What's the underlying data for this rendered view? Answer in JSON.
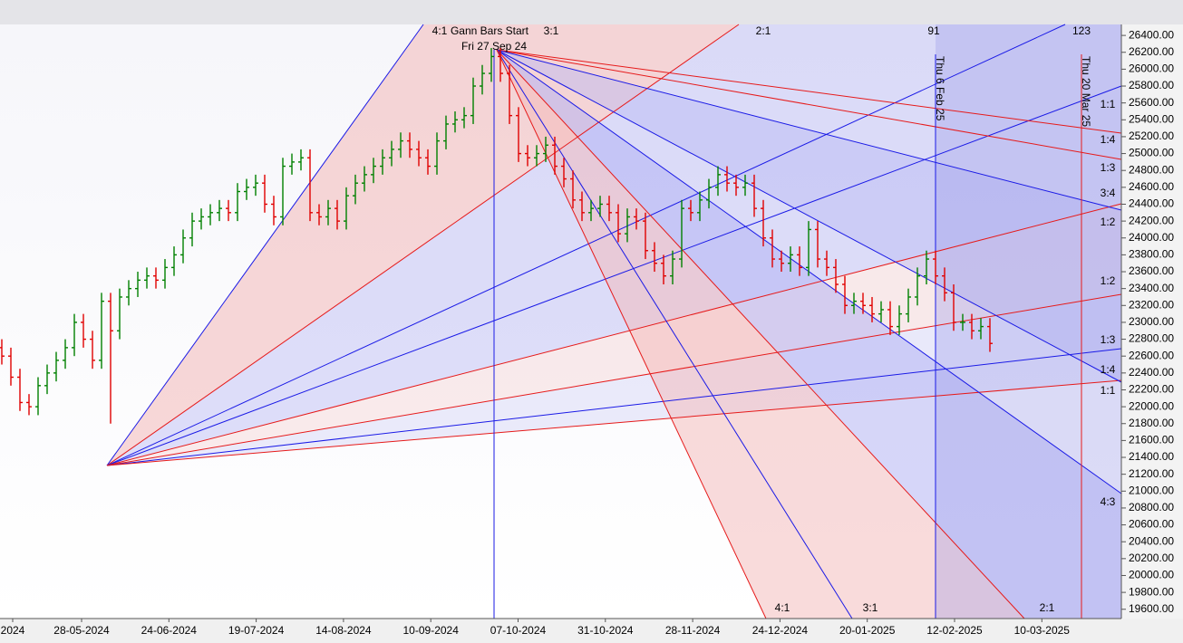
{
  "chart_data": {
    "type": "ohlc",
    "up_color": "#008000",
    "down_color": "#e00000",
    "ylim": [
      19490,
      26530
    ],
    "yticks": [
      {
        "value": 26400,
        "label": "26400.00"
      },
      {
        "value": 26200,
        "label": "26200.00"
      },
      {
        "value": 26000,
        "label": "26000.00"
      },
      {
        "value": 25800,
        "label": "25800.00"
      },
      {
        "value": 25600,
        "label": "25600.00"
      },
      {
        "value": 25400,
        "label": "25400.00"
      },
      {
        "value": 25200,
        "label": "25200.00"
      },
      {
        "value": 25000,
        "label": "25000.00"
      },
      {
        "value": 24800,
        "label": "24800.00"
      },
      {
        "value": 24600,
        "label": "24600.00"
      },
      {
        "value": 24400,
        "label": "24400.00"
      },
      {
        "value": 24200,
        "label": "24200.00"
      },
      {
        "value": 24000,
        "label": "24000.00"
      },
      {
        "value": 23800,
        "label": "23800.00"
      },
      {
        "value": 23600,
        "label": "23600.00"
      },
      {
        "value": 23400,
        "label": "23400.00"
      },
      {
        "value": 23200,
        "label": "23200.00"
      },
      {
        "value": 23000,
        "label": "23000.00"
      },
      {
        "value": 22800,
        "label": "22800.00"
      },
      {
        "value": 22600,
        "label": "22600.00"
      },
      {
        "value": 22400,
        "label": "22400.00"
      },
      {
        "value": 22200,
        "label": "22200.00"
      },
      {
        "value": 22000,
        "label": "22000.00"
      },
      {
        "value": 21800,
        "label": "21800.00"
      },
      {
        "value": 21600,
        "label": "21600.00"
      },
      {
        "value": 21400,
        "label": "21400.00"
      },
      {
        "value": 21200,
        "label": "21200.00"
      },
      {
        "value": 21000,
        "label": "21000.00"
      },
      {
        "value": 20800,
        "label": "20800.00"
      },
      {
        "value": 20600,
        "label": "20600.00"
      },
      {
        "value": 20400,
        "label": "20400.00"
      },
      {
        "value": 20200,
        "label": "20200.00"
      },
      {
        "value": 20000,
        "label": "20000.00"
      },
      {
        "value": 19800,
        "label": "19800.00"
      },
      {
        "value": 19600,
        "label": "19600.00"
      }
    ],
    "xticks": [
      "2024",
      "28-05-2024",
      "24-06-2024",
      "19-07-2024",
      "14-08-2024",
      "10-09-2024",
      "07-10-2024",
      "31-10-2024",
      "28-11-2024",
      "24-12-2024",
      "20-01-2025",
      "12-02-2025",
      "10-03-2025"
    ],
    "annotations": [
      "4:1",
      "Gann Bars Start",
      "3:1",
      "Fri 27 Sep 24",
      "2:1",
      "91",
      "123"
    ],
    "date_markers": [
      "Thu 6 Feb 25",
      "Thu 20 Mar 25"
    ],
    "angle_labels_right": [
      "1:1",
      "1:4",
      "1:3",
      "3:4",
      "1:2",
      "1:2",
      "1:3",
      "1:4",
      "1:1",
      "4:3"
    ],
    "angle_labels_bottom": [
      "4:1",
      "3:1",
      "2:1"
    ],
    "open": [
      22700,
      22600,
      22350,
      22050,
      22000,
      22250,
      22400,
      22550,
      22700,
      23000,
      22800,
      22550,
      23250,
      22900,
      23300,
      23400,
      23500,
      23550,
      23500,
      23650,
      23800,
      24000,
      24200,
      24250,
      24300,
      24350,
      24300,
      24550,
      24600,
      24650,
      24400,
      24250,
      24850,
      24900,
      24950,
      24300,
      24250,
      24350,
      24200,
      24500,
      24650,
      24750,
      24850,
      24950,
      25050,
      25150,
      25050,
      24950,
      24850,
      25150,
      25350,
      25400,
      25450,
      25800,
      25950,
      26150,
      25950,
      25450,
      25000,
      24950,
      25000,
      25100,
      24850,
      24700,
      24450,
      24300,
      24350,
      24400,
      24300,
      24050,
      24250,
      24200,
      23850,
      23700,
      23550,
      23750,
      24350,
      24300,
      24450,
      24600,
      24750,
      24650,
      24600,
      24650,
      24350,
      24000,
      23750,
      23700,
      23800,
      23650,
      24100,
      23750,
      23650,
      23450,
      23200,
      23250,
      23200,
      23100,
      23150,
      22950,
      23100,
      23300,
      23550,
      23750,
      23550,
      23350,
      23000,
      23000,
      22900,
      22950
    ],
    "high": [
      22800,
      22700,
      22450,
      22150,
      22350,
      22500,
      22650,
      22800,
      23100,
      23100,
      22900,
      23350,
      23350,
      23400,
      23500,
      23600,
      23650,
      23650,
      23750,
      23900,
      24100,
      24300,
      24350,
      24400,
      24450,
      24450,
      24650,
      24700,
      24750,
      24750,
      24500,
      24950,
      25000,
      25050,
      25050,
      24400,
      24450,
      24450,
      24600,
      24750,
      24850,
      24950,
      25050,
      25150,
      25250,
      25250,
      25150,
      25050,
      25250,
      25450,
      25500,
      25550,
      25900,
      26050,
      26250,
      26250,
      26050,
      25550,
      25100,
      25100,
      25200,
      25200,
      24950,
      24800,
      24550,
      24450,
      24500,
      24500,
      24400,
      24350,
      24350,
      24300,
      23950,
      23800,
      23850,
      24450,
      24450,
      24550,
      24700,
      24850,
      24850,
      24750,
      24750,
      24750,
      24450,
      24100,
      23850,
      23900,
      23900,
      24200,
      24200,
      23850,
      23750,
      23550,
      23350,
      23350,
      23300,
      23250,
      23250,
      23200,
      23400,
      23650,
      23850,
      23850,
      23650,
      23450,
      23100,
      23100,
      23050,
      23050
    ],
    "low": [
      22500,
      22250,
      21950,
      21900,
      21900,
      22150,
      22300,
      22450,
      22600,
      22700,
      22450,
      22450,
      21800,
      22800,
      23200,
      23300,
      23400,
      23400,
      23400,
      23550,
      23700,
      23900,
      24100,
      24150,
      24200,
      24200,
      24200,
      24450,
      24500,
      24300,
      24150,
      24150,
      24750,
      24800,
      24200,
      24150,
      24150,
      24100,
      24100,
      24400,
      24550,
      24650,
      24750,
      24850,
      24950,
      24950,
      24850,
      24750,
      24750,
      25050,
      25250,
      25300,
      25350,
      25700,
      25850,
      25850,
      25350,
      24900,
      24850,
      24850,
      24900,
      24750,
      24600,
      24350,
      24200,
      24200,
      24250,
      24200,
      23950,
      23950,
      24100,
      23750,
      23600,
      23450,
      23450,
      23650,
      24200,
      24200,
      24350,
      24500,
      24550,
      24500,
      24500,
      24250,
      23900,
      23650,
      23600,
      23600,
      23550,
      23550,
      23650,
      23550,
      23350,
      23100,
      23100,
      23100,
      23000,
      23000,
      22850,
      22850,
      23000,
      23200,
      23450,
      23450,
      23250,
      22900,
      22900,
      22800,
      22800,
      22650
    ],
    "close": [
      22600,
      22350,
      22050,
      22000,
      22250,
      22400,
      22550,
      22700,
      23000,
      22800,
      22550,
      23250,
      22900,
      23300,
      23400,
      23500,
      23550,
      23500,
      23650,
      23800,
      24000,
      24200,
      24250,
      24300,
      24350,
      24300,
      24550,
      24600,
      24650,
      24400,
      24250,
      24850,
      24900,
      24950,
      24300,
      24250,
      24350,
      24200,
      24500,
      24650,
      24750,
      24850,
      24950,
      25050,
      25150,
      25050,
      24950,
      24850,
      25150,
      25350,
      25400,
      25450,
      25800,
      25950,
      26150,
      25950,
      25450,
      25000,
      24950,
      25000,
      25100,
      24850,
      24700,
      24450,
      24300,
      24350,
      24400,
      24300,
      24050,
      24250,
      24200,
      23850,
      23700,
      23550,
      23750,
      24350,
      24300,
      24450,
      24600,
      24750,
      24650,
      24600,
      24650,
      24350,
      24000,
      23750,
      23700,
      23800,
      23650,
      24100,
      23750,
      23650,
      23450,
      23200,
      23250,
      23200,
      23100,
      23150,
      22950,
      23100,
      23300,
      23550,
      23750,
      23550,
      23350,
      23000,
      23000,
      22900,
      22950,
      22750
    ]
  }
}
